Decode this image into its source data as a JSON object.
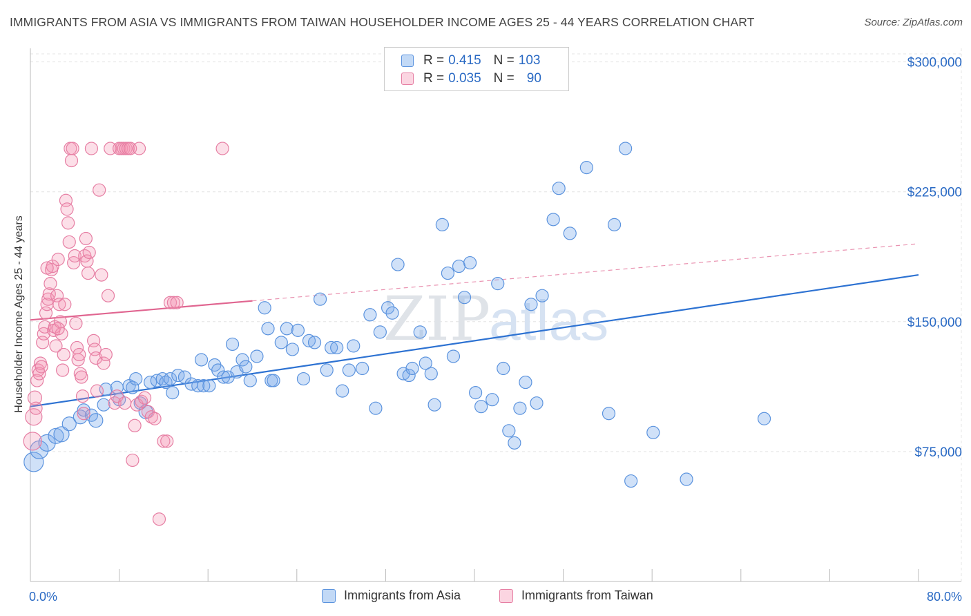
{
  "title": "IMMIGRANTS FROM ASIA VS IMMIGRANTS FROM TAIWAN HOUSEHOLDER INCOME AGES 25 - 44 YEARS CORRELATION CHART",
  "source": "Source: ZipAtlas.com",
  "watermark": {
    "zip": "ZIP",
    "atlas": "atlas"
  },
  "colors": {
    "asia_fill": "rgba(120,170,235,0.35)",
    "asia_stroke": "#5b93de",
    "asia_line": "#2d72d2",
    "taiwan_fill": "rgba(245,150,180,0.30)",
    "taiwan_stroke": "#e67ea3",
    "taiwan_line": "#e06590",
    "axis_label": "#2a6ac4"
  },
  "legend": {
    "rows": [
      {
        "r_label": "R =",
        "r_value": "0.415",
        "n_label": "N =",
        "n_value": "103"
      },
      {
        "r_label": "R =",
        "r_value": "0.035",
        "n_label": "N =",
        "n_value": "90"
      }
    ]
  },
  "chart_data": {
    "type": "scatter",
    "xlabel": "",
    "ylabel": "Householder Income Ages 25 - 44 years",
    "xlim": [
      0,
      80
    ],
    "ylim": [
      0,
      315000
    ],
    "x_tick_labels": {
      "left": "0.0%",
      "right": "80.0%"
    },
    "y_ticks": [
      {
        "value": 75000,
        "label": "$75,000"
      },
      {
        "value": 150000,
        "label": "$150,000"
      },
      {
        "value": 225000,
        "label": "$225,000"
      },
      {
        "value": 300000,
        "label": "$300,000"
      }
    ],
    "grid": true,
    "legend_position": "top-center",
    "series": [
      {
        "name": "Immigrants from Asia",
        "trend": {
          "x": [
            0,
            80
          ],
          "y": [
            101000,
            177000
          ],
          "dashed_from": null
        },
        "points": [
          [
            0.3,
            69000,
            14
          ],
          [
            0.8,
            76000,
            13
          ],
          [
            1.5,
            80000,
            12
          ],
          [
            2.3,
            84000,
            11
          ],
          [
            2.8,
            85000,
            11
          ],
          [
            3.5,
            91000,
            10
          ],
          [
            4.5,
            95000,
            10
          ],
          [
            4.8,
            99000,
            9
          ],
          [
            5.5,
            96000,
            9
          ],
          [
            5.9,
            93000,
            10
          ],
          [
            6.6,
            102000,
            9
          ],
          [
            6.8,
            111000,
            9
          ],
          [
            7.8,
            112000,
            9
          ],
          [
            8.0,
            105000,
            9
          ],
          [
            8.9,
            113000,
            9
          ],
          [
            9.2,
            112000,
            9
          ],
          [
            9.5,
            117000,
            9
          ],
          [
            9.9,
            103000,
            9
          ],
          [
            10.4,
            98000,
            10
          ],
          [
            10.8,
            115000,
            9
          ],
          [
            11.4,
            116000,
            9
          ],
          [
            11.9,
            117000,
            9
          ],
          [
            12.2,
            115000,
            9
          ],
          [
            12.6,
            117000,
            9
          ],
          [
            12.8,
            109000,
            9
          ],
          [
            13.3,
            119000,
            9
          ],
          [
            13.9,
            118000,
            9
          ],
          [
            14.5,
            114000,
            9
          ],
          [
            15.1,
            113000,
            9
          ],
          [
            15.4,
            128000,
            9
          ],
          [
            15.6,
            113000,
            9
          ],
          [
            16.1,
            113000,
            9
          ],
          [
            16.6,
            125000,
            9
          ],
          [
            16.9,
            122000,
            9
          ],
          [
            17.4,
            118000,
            9
          ],
          [
            17.8,
            118000,
            9
          ],
          [
            18.2,
            137000,
            9
          ],
          [
            18.6,
            121000,
            9
          ],
          [
            19.1,
            128000,
            9
          ],
          [
            19.4,
            124000,
            9
          ],
          [
            19.8,
            116000,
            9
          ],
          [
            20.4,
            130000,
            9
          ],
          [
            21.1,
            158000,
            9
          ],
          [
            21.4,
            146000,
            9
          ],
          [
            21.7,
            116000,
            9
          ],
          [
            21.9,
            116000,
            9
          ],
          [
            22.6,
            138000,
            9
          ],
          [
            23.1,
            146000,
            9
          ],
          [
            23.6,
            134000,
            9
          ],
          [
            24.1,
            145000,
            9
          ],
          [
            24.6,
            117000,
            9
          ],
          [
            25.1,
            139000,
            9
          ],
          [
            25.6,
            138000,
            9
          ],
          [
            26.1,
            163000,
            9
          ],
          [
            26.7,
            122000,
            9
          ],
          [
            27.1,
            135000,
            9
          ],
          [
            27.6,
            135000,
            9
          ],
          [
            28.1,
            110000,
            9
          ],
          [
            28.7,
            122000,
            9
          ],
          [
            29.1,
            136000,
            9
          ],
          [
            29.9,
            123000,
            9
          ],
          [
            30.6,
            154000,
            9
          ],
          [
            31.1,
            100000,
            9
          ],
          [
            31.5,
            144000,
            9
          ],
          [
            32.2,
            158000,
            9
          ],
          [
            32.6,
            155000,
            9
          ],
          [
            33.1,
            183000,
            9
          ],
          [
            33.6,
            120000,
            9
          ],
          [
            34.1,
            119000,
            9
          ],
          [
            34.4,
            123000,
            9
          ],
          [
            35.1,
            144000,
            9
          ],
          [
            35.6,
            126000,
            9
          ],
          [
            36.1,
            120000,
            9
          ],
          [
            36.4,
            102000,
            9
          ],
          [
            37.1,
            206000,
            9
          ],
          [
            37.6,
            178000,
            9
          ],
          [
            38.1,
            130000,
            9
          ],
          [
            38.6,
            182000,
            9
          ],
          [
            39.1,
            164000,
            9
          ],
          [
            39.6,
            184000,
            9
          ],
          [
            40.1,
            109000,
            9
          ],
          [
            40.6,
            101000,
            9
          ],
          [
            41.6,
            105000,
            9
          ],
          [
            42.1,
            172000,
            9
          ],
          [
            42.6,
            123000,
            9
          ],
          [
            43.1,
            87000,
            9
          ],
          [
            43.6,
            80000,
            9
          ],
          [
            44.1,
            100000,
            9
          ],
          [
            44.6,
            115000,
            9
          ],
          [
            45.1,
            160000,
            9
          ],
          [
            45.6,
            103000,
            9
          ],
          [
            46.1,
            165000,
            9
          ],
          [
            47.1,
            209000,
            9
          ],
          [
            47.6,
            227000,
            9
          ],
          [
            48.6,
            201000,
            9
          ],
          [
            50.1,
            239000,
            9
          ],
          [
            52.1,
            97000,
            9
          ],
          [
            52.6,
            206000,
            9
          ],
          [
            53.6,
            250000,
            9
          ],
          [
            54.1,
            58000,
            9
          ],
          [
            56.1,
            86000,
            9
          ],
          [
            59.1,
            59000,
            9
          ],
          [
            66.1,
            94000,
            9
          ]
        ]
      },
      {
        "name": "Immigrants from Taiwan",
        "trend": {
          "x": [
            0,
            80
          ],
          "y": [
            151000,
            195000
          ],
          "dashed_from": 20
        },
        "points": [
          [
            0.2,
            81000,
            13
          ],
          [
            0.3,
            95000,
            12
          ],
          [
            0.4,
            106000,
            10
          ],
          [
            0.5,
            100000,
            9
          ],
          [
            0.6,
            116000,
            9
          ],
          [
            0.7,
            122000,
            9
          ],
          [
            0.8,
            120000,
            9
          ],
          [
            0.9,
            126000,
            9
          ],
          [
            1.0,
            124000,
            9
          ],
          [
            1.1,
            138000,
            9
          ],
          [
            1.2,
            143000,
            9
          ],
          [
            1.3,
            147000,
            9
          ],
          [
            1.4,
            155000,
            9
          ],
          [
            1.5,
            160000,
            9
          ],
          [
            1.6,
            163000,
            9
          ],
          [
            1.7,
            166000,
            9
          ],
          [
            1.8,
            172000,
            9
          ],
          [
            1.9,
            180000,
            9
          ],
          [
            2.0,
            182000,
            9
          ],
          [
            2.1,
            145000,
            9
          ],
          [
            2.2,
            147000,
            9
          ],
          [
            2.3,
            136000,
            9
          ],
          [
            2.4,
            165000,
            9
          ],
          [
            2.5,
            186000,
            9
          ],
          [
            2.6,
            160000,
            9
          ],
          [
            2.7,
            150000,
            9
          ],
          [
            2.8,
            143000,
            9
          ],
          [
            2.9,
            122000,
            9
          ],
          [
            3.0,
            131000,
            9
          ],
          [
            3.1,
            160000,
            9
          ],
          [
            3.2,
            220000,
            9
          ],
          [
            3.3,
            215000,
            9
          ],
          [
            3.4,
            207000,
            9
          ],
          [
            3.5,
            196000,
            9
          ],
          [
            3.6,
            250000,
            9
          ],
          [
            3.7,
            243000,
            9
          ],
          [
            3.8,
            250000,
            9
          ],
          [
            3.9,
            184000,
            9
          ],
          [
            4.0,
            188000,
            9
          ],
          [
            4.1,
            149000,
            9
          ],
          [
            4.2,
            135000,
            9
          ],
          [
            4.3,
            128000,
            9
          ],
          [
            4.4,
            131000,
            9
          ],
          [
            4.5,
            120000,
            9
          ],
          [
            4.6,
            118000,
            9
          ],
          [
            4.7,
            107000,
            9
          ],
          [
            4.8,
            97000,
            9
          ],
          [
            4.9,
            188000,
            9
          ],
          [
            5.0,
            198000,
            9
          ],
          [
            5.1,
            185000,
            9
          ],
          [
            5.2,
            178000,
            9
          ],
          [
            5.3,
            190000,
            9
          ],
          [
            5.5,
            250000,
            9
          ],
          [
            5.7,
            139000,
            9
          ],
          [
            5.8,
            134000,
            9
          ],
          [
            5.9,
            129000,
            9
          ],
          [
            6.0,
            110000,
            9
          ],
          [
            6.2,
            226000,
            9
          ],
          [
            6.4,
            177000,
            9
          ],
          [
            6.6,
            126000,
            9
          ],
          [
            6.8,
            131000,
            9
          ],
          [
            7.0,
            165000,
            9
          ],
          [
            7.2,
            250000,
            9
          ],
          [
            7.6,
            103000,
            9
          ],
          [
            7.8,
            107000,
            9
          ],
          [
            8.0,
            250000,
            9
          ],
          [
            8.2,
            250000,
            9
          ],
          [
            8.4,
            250000,
            9
          ],
          [
            8.6,
            250000,
            9
          ],
          [
            8.8,
            250000,
            9
          ],
          [
            9.0,
            250000,
            9
          ],
          [
            9.2,
            70000,
            9
          ],
          [
            9.4,
            90000,
            9
          ],
          [
            9.6,
            102000,
            9
          ],
          [
            9.8,
            250000,
            9
          ],
          [
            10.0,
            104000,
            9
          ],
          [
            10.3,
            106000,
            9
          ],
          [
            10.6,
            98000,
            9
          ],
          [
            10.9,
            95000,
            9
          ],
          [
            11.2,
            94000,
            9
          ],
          [
            11.6,
            36000,
            9
          ],
          [
            12.0,
            81000,
            9
          ],
          [
            12.3,
            81000,
            9
          ],
          [
            12.6,
            161000,
            9
          ],
          [
            12.9,
            161000,
            9
          ],
          [
            13.2,
            161000,
            9
          ],
          [
            17.3,
            250000,
            9
          ],
          [
            8.5,
            103000,
            9
          ],
          [
            1.5,
            181000,
            9
          ],
          [
            2.5,
            146000,
            9
          ]
        ]
      }
    ]
  },
  "bottom_legend": [
    "Immigrants from Asia",
    "Immigrants from Taiwan"
  ]
}
